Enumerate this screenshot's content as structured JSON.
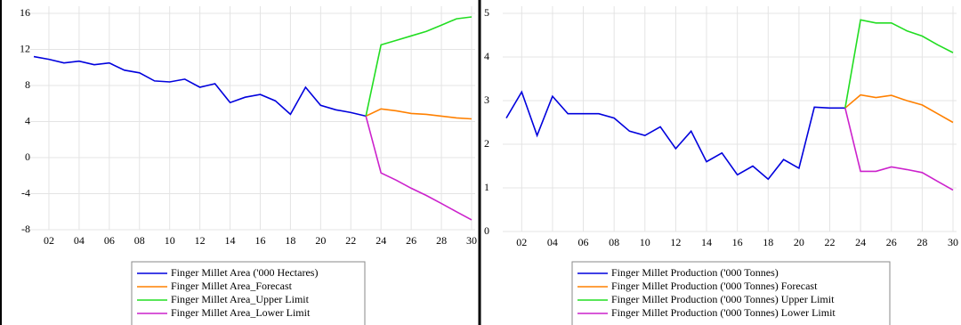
{
  "chart_data": [
    {
      "type": "line",
      "legend": "bottom",
      "grid": true,
      "categories": [
        null,
        "02",
        null,
        "04",
        null,
        "06",
        null,
        "08",
        null,
        "10",
        null,
        "12",
        null,
        "14",
        null,
        "16",
        null,
        "18",
        null,
        "20",
        null,
        "22",
        null,
        "24",
        null,
        "26",
        null,
        "28",
        null,
        "30"
      ],
      "ylim": [
        -8,
        16
      ],
      "yticks": [
        -8,
        -4,
        0,
        4,
        8,
        12,
        16
      ],
      "series": [
        {
          "name": "Finger Millet Area ('000 Hectares)",
          "color": "#0000dd",
          "values": [
            11.2,
            10.9,
            10.5,
            10.7,
            10.3,
            10.5,
            9.7,
            9.4,
            8.5,
            8.4,
            8.7,
            7.8,
            8.2,
            6.1,
            6.7,
            7.0,
            6.3,
            4.8,
            7.8,
            5.8,
            5.3,
            5.0,
            4.6,
            null,
            null,
            null,
            null,
            null,
            null,
            null
          ]
        },
        {
          "name": "Finger Millet Area_Forecast",
          "color": "#ff8000",
          "values": [
            null,
            null,
            null,
            null,
            null,
            null,
            null,
            null,
            null,
            null,
            null,
            null,
            null,
            null,
            null,
            null,
            null,
            null,
            null,
            null,
            null,
            null,
            4.6,
            5.4,
            5.2,
            4.9,
            4.8,
            4.6,
            4.4,
            4.3
          ]
        },
        {
          "name": "Finger Millet Area_Upper Limit",
          "color": "#22dd22",
          "values": [
            null,
            null,
            null,
            null,
            null,
            null,
            null,
            null,
            null,
            null,
            null,
            null,
            null,
            null,
            null,
            null,
            null,
            null,
            null,
            null,
            null,
            null,
            4.6,
            12.5,
            13.0,
            13.5,
            14.0,
            14.7,
            15.4,
            15.6
          ]
        },
        {
          "name": "Finger Millet Area_Lower Limit",
          "color": "#cc22cc",
          "values": [
            null,
            null,
            null,
            null,
            null,
            null,
            null,
            null,
            null,
            null,
            null,
            null,
            null,
            null,
            null,
            null,
            null,
            null,
            null,
            null,
            null,
            null,
            4.6,
            -1.7,
            -2.5,
            -3.4,
            -4.2,
            -5.1,
            -6.0,
            -6.9
          ]
        }
      ]
    },
    {
      "type": "line",
      "legend": "bottom",
      "grid": true,
      "categories": [
        null,
        "02",
        null,
        "04",
        null,
        "06",
        null,
        "08",
        null,
        "10",
        null,
        "12",
        null,
        "14",
        null,
        "16",
        null,
        "18",
        null,
        "20",
        null,
        "22",
        null,
        "24",
        null,
        "26",
        null,
        "28",
        null,
        "30"
      ],
      "ylim": [
        0,
        5
      ],
      "yticks": [
        0,
        1,
        2,
        3,
        4,
        5
      ],
      "series": [
        {
          "name": "Finger Millet Production ('000 Tonnes)",
          "color": "#0000dd",
          "values": [
            2.6,
            3.2,
            2.2,
            3.1,
            2.7,
            2.7,
            2.7,
            2.6,
            2.3,
            2.2,
            2.4,
            1.9,
            2.3,
            1.6,
            1.8,
            1.3,
            1.5,
            1.2,
            1.65,
            1.45,
            2.85,
            2.83,
            2.83,
            null,
            null,
            null,
            null,
            null,
            null,
            null
          ]
        },
        {
          "name": "Finger Millet Production ('000 Tonnes) Forecast",
          "color": "#ff8000",
          "values": [
            null,
            null,
            null,
            null,
            null,
            null,
            null,
            null,
            null,
            null,
            null,
            null,
            null,
            null,
            null,
            null,
            null,
            null,
            null,
            null,
            null,
            null,
            2.83,
            3.13,
            3.07,
            3.12,
            3.0,
            2.9,
            2.7,
            2.5
          ]
        },
        {
          "name": "Finger Millet Production ('000 Tonnes) Upper Limit",
          "color": "#22dd22",
          "values": [
            null,
            null,
            null,
            null,
            null,
            null,
            null,
            null,
            null,
            null,
            null,
            null,
            null,
            null,
            null,
            null,
            null,
            null,
            null,
            null,
            null,
            null,
            2.83,
            4.85,
            4.78,
            4.78,
            4.6,
            4.48,
            4.28,
            4.1
          ]
        },
        {
          "name": "Finger Millet Production ('000 Tonnes) Lower Limit",
          "color": "#cc22cc",
          "values": [
            null,
            null,
            null,
            null,
            null,
            null,
            null,
            null,
            null,
            null,
            null,
            null,
            null,
            null,
            null,
            null,
            null,
            null,
            null,
            null,
            null,
            null,
            2.83,
            1.38,
            1.38,
            1.48,
            1.42,
            1.35,
            1.15,
            0.95
          ]
        }
      ]
    }
  ]
}
